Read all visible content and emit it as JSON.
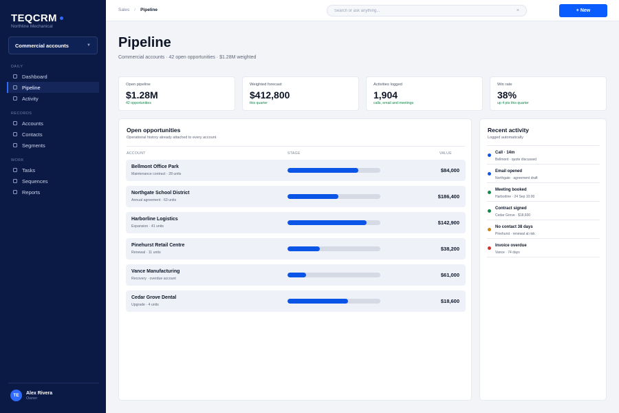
{
  "app": {
    "name": "TEQCRM",
    "subtitle": "Northline Mechanical",
    "accent": "#2f6bff"
  },
  "workspace": {
    "label": "Commercial accounts"
  },
  "nav": {
    "sections": [
      {
        "label": "DAILY",
        "items": [
          {
            "label": "Dashboard"
          },
          {
            "label": "Pipeline",
            "active": true
          },
          {
            "label": "Activity"
          }
        ]
      },
      {
        "label": "RECORDS",
        "items": [
          {
            "label": "Accounts"
          },
          {
            "label": "Contacts"
          },
          {
            "label": "Segments"
          }
        ]
      },
      {
        "label": "WORK",
        "items": [
          {
            "label": "Tasks"
          },
          {
            "label": "Sequences"
          },
          {
            "label": "Reports"
          }
        ]
      }
    ]
  },
  "user": {
    "initials": "TE",
    "name": "Alex Rivera",
    "role": "Owner"
  },
  "topbar": {
    "breadcrumb_parent": "Sales",
    "breadcrumb_sep": "/",
    "breadcrumb_current": "Pipeline",
    "search_placeholder": "Search or ask anything...",
    "search_clear": "×",
    "new_button": "+ New"
  },
  "page": {
    "title": "Pipeline",
    "subtitle": "Commercial accounts · 42 open opportunities · $1.28M weighted"
  },
  "kpis": [
    {
      "label": "Open pipeline",
      "value": "$1.28M",
      "note": "42 opportunities"
    },
    {
      "label": "Weighted forecast",
      "value": "$412,800",
      "note": "this quarter"
    },
    {
      "label": "Activities logged",
      "value": "1,904",
      "note": "calls, email and meetings"
    },
    {
      "label": "Win rate",
      "value": "38%",
      "note": "up 4 pts this quarter"
    }
  ],
  "opportunities": {
    "title": "Open opportunities",
    "subtitle": "Operational history already attached to every account",
    "headers": {
      "account": "ACCOUNT",
      "stage": "STAGE",
      "value": "VALUE"
    },
    "rows": [
      {
        "name": "Bellmont Office Park",
        "meta": "Maintenance contract · 28 units",
        "progress": 0.76,
        "value": "$84,000"
      },
      {
        "name": "Northgate School District",
        "meta": "Annual agreement · 63 units",
        "progress": 0.55,
        "value": "$186,400"
      },
      {
        "name": "Harborline Logistics",
        "meta": "Expansion · 41 units",
        "progress": 0.85,
        "value": "$142,900"
      },
      {
        "name": "Pinehurst Retail Centre",
        "meta": "Renewal · 11 units",
        "progress": 0.35,
        "value": "$38,200"
      },
      {
        "name": "Vance Manufacturing",
        "meta": "Recovery · overdue account",
        "progress": 0.2,
        "value": "$61,000"
      },
      {
        "name": "Cedar Grove Dental",
        "meta": "Upgrade · 4 units",
        "progress": 0.65,
        "value": "$18,600"
      }
    ]
  },
  "activity": {
    "title": "Recent activity",
    "subtitle": "Logged automatically",
    "items": [
      {
        "title": "Call · 14m",
        "meta": "Bellmont · quote discussed",
        "color": "#0b55e6"
      },
      {
        "title": "Email opened",
        "meta": "Northgate · agreement draft",
        "color": "#0b55e6"
      },
      {
        "title": "Meeting booked",
        "meta": "Harborline · 24 Sep 10:00",
        "color": "#0e8a4a"
      },
      {
        "title": "Contract signed",
        "meta": "Cedar Grove · $18,600",
        "color": "#0e8a4a"
      },
      {
        "title": "No contact 38 days",
        "meta": "Pinehurst · renewal at risk",
        "color": "#c88a12"
      },
      {
        "title": "Invoice overdue",
        "meta": "Vance · 74 days",
        "color": "#d0342c"
      }
    ]
  }
}
